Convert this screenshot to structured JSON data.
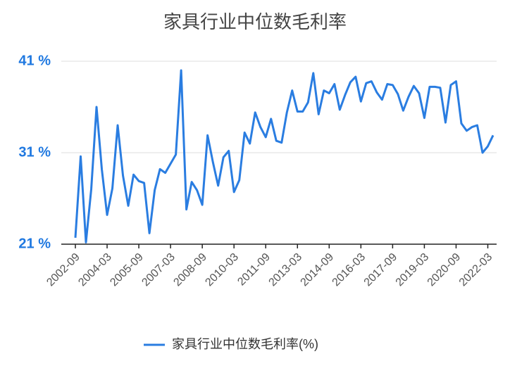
{
  "chart_data": {
    "type": "line",
    "title": "家具行业中位数毛利率",
    "categories": [
      "2002-09",
      null,
      null,
      null,
      null,
      null,
      "2004-03",
      null,
      null,
      null,
      null,
      null,
      "2005-09",
      null,
      null,
      null,
      null,
      null,
      "2007-03",
      null,
      null,
      null,
      null,
      null,
      "2008-09",
      null,
      null,
      null,
      null,
      null,
      "2010-03",
      null,
      null,
      null,
      null,
      null,
      "2011-09",
      null,
      null,
      null,
      null,
      null,
      "2013-03",
      null,
      null,
      null,
      null,
      null,
      "2014-09",
      null,
      null,
      null,
      null,
      null,
      "2016-03",
      null,
      null,
      null,
      null,
      null,
      "2017-09",
      null,
      null,
      null,
      null,
      null,
      "2019-03",
      null,
      null,
      null,
      null,
      null,
      "2020-09",
      null,
      null,
      null,
      null,
      null,
      "2022-03",
      null
    ],
    "series": [
      {
        "name": "家具行业中位数毛利率(%)",
        "color": "#2a7de1",
        "values": [
          21.7,
          30.6,
          21.2,
          27,
          36,
          29.2,
          24.2,
          27.1,
          34,
          28.5,
          25.2,
          28.6,
          27.9,
          27.7,
          22.2,
          26.9,
          29.2,
          28.8,
          29.8,
          30.8,
          40,
          24.8,
          27.8,
          26.9,
          25.3,
          32.9,
          30,
          27.4,
          30.5,
          31.2,
          26.7,
          28,
          33.2,
          32,
          35.4,
          33.8,
          32.7,
          34.7,
          32.3,
          32.1,
          35.4,
          37.8,
          35.5,
          35.5,
          36.5,
          39.7,
          35.2,
          37.8,
          37.5,
          38.5,
          35.7,
          37.3,
          38.7,
          39.3,
          36.6,
          38.6,
          38.8,
          37.6,
          36.8,
          38.5,
          38.4,
          37.4,
          35.6,
          37.1,
          38.3,
          37.5,
          34.8,
          38.2,
          38.2,
          38.1,
          34.3,
          38.4,
          38.8,
          34.2,
          33.4,
          33.8,
          34,
          31,
          31.7,
          32.9
        ]
      }
    ],
    "ylim": [
      21,
      41
    ],
    "yticks": [
      {
        "value": 21,
        "label": "21 %"
      },
      {
        "value": 31,
        "label": "31 %"
      },
      {
        "value": 41,
        "label": "41 %"
      }
    ],
    "grid": true
  }
}
